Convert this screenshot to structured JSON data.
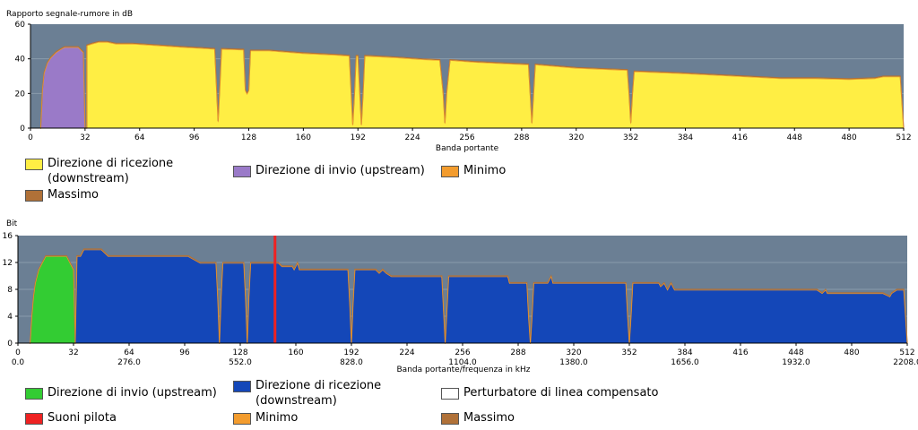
{
  "colors": {
    "plot_bg": "#6b7f94",
    "snr_downstream": "#ffee44",
    "snr_upstream": "#9a7ac8",
    "minimum": "#f39c2e",
    "maximum": "#b07138",
    "bits_upstream": "#33cc33",
    "bits_downstream": "#1447b8",
    "pilot": "#ee2222",
    "compensated": "#ffffff"
  },
  "chart_data": [
    {
      "id": "snr",
      "type": "area",
      "ylabel": "Rapporto segnale-rumore in dB",
      "xlabel": "Banda portante",
      "xlim": [
        0,
        512
      ],
      "ylim": [
        0,
        60
      ],
      "yticks": [
        "0",
        "20",
        "40",
        "60"
      ],
      "xticks": [
        "0",
        "32",
        "64",
        "96",
        "128",
        "160",
        "192",
        "224",
        "256",
        "288",
        "320",
        "352",
        "384",
        "416",
        "448",
        "480",
        "512"
      ],
      "grid": true,
      "series": [
        {
          "name": "Direzione di invio (upstream)",
          "color_key": "snr_upstream",
          "points": [
            [
              6,
              0
            ],
            [
              7,
              22
            ],
            [
              8,
              32
            ],
            [
              10,
              38
            ],
            [
              12,
              41
            ],
            [
              15,
              44
            ],
            [
              18,
              46
            ],
            [
              20,
              47
            ],
            [
              26,
              47
            ],
            [
              28,
              47
            ],
            [
              30,
              45
            ],
            [
              31,
              44
            ],
            [
              32,
              0
            ]
          ]
        },
        {
          "name": "Direzione di ricezione (downstream)",
          "color_key": "snr_downstream",
          "points": [
            [
              33,
              0
            ],
            [
              33,
              48
            ],
            [
              36,
              49
            ],
            [
              40,
              50
            ],
            [
              45,
              50
            ],
            [
              50,
              49
            ],
            [
              60,
              49
            ],
            [
              75,
              48
            ],
            [
              90,
              47
            ],
            [
              100,
              46.5
            ],
            [
              108,
              46
            ],
            [
              109,
              25
            ],
            [
              110,
              4
            ],
            [
              111,
              24
            ],
            [
              112,
              46
            ],
            [
              125,
              45.5
            ],
            [
              126,
              22
            ],
            [
              127,
              20
            ],
            [
              128,
              22
            ],
            [
              129,
              45
            ],
            [
              140,
              45
            ],
            [
              160,
              43.5
            ],
            [
              180,
              42.5
            ],
            [
              187,
              42
            ],
            [
              188,
              22
            ],
            [
              189,
              2
            ],
            [
              190,
              20
            ],
            [
              191,
              42
            ],
            [
              192,
              42
            ],
            [
              193,
              22
            ],
            [
              194,
              2
            ],
            [
              195,
              20
            ],
            [
              196,
              42
            ],
            [
              215,
              41
            ],
            [
              230,
              40
            ],
            [
              240,
              39.5
            ],
            [
              242,
              20
            ],
            [
              243,
              3
            ],
            [
              244,
              20
            ],
            [
              246,
              39.5
            ],
            [
              260,
              38.5
            ],
            [
              280,
              37.5
            ],
            [
              292,
              37
            ],
            [
              293,
              20
            ],
            [
              294,
              3
            ],
            [
              295,
              20
            ],
            [
              296,
              37
            ],
            [
              320,
              35
            ],
            [
              345,
              34
            ],
            [
              350,
              33.8
            ],
            [
              351,
              20
            ],
            [
              352,
              3
            ],
            [
              353,
              20
            ],
            [
              354,
              33
            ],
            [
              380,
              32
            ],
            [
              410,
              30.5
            ],
            [
              440,
              29
            ],
            [
              460,
              29
            ],
            [
              480,
              28.5
            ],
            [
              495,
              29
            ],
            [
              500,
              30
            ],
            [
              508,
              30
            ],
            [
              510,
              30
            ],
            [
              511,
              15
            ],
            [
              512,
              0
            ]
          ]
        }
      ]
    },
    {
      "id": "bits",
      "type": "area",
      "ylabel": "Bit",
      "xlabel": "Banda portante/frequenza in kHz",
      "xlim": [
        0,
        512
      ],
      "ylim": [
        0,
        16
      ],
      "yticks": [
        "0",
        "4",
        "8",
        "12",
        "16"
      ],
      "xticks": [
        "0",
        "32",
        "64",
        "96",
        "128",
        "160",
        "192",
        "224",
        "256",
        "288",
        "320",
        "352",
        "384",
        "416",
        "448",
        "480",
        "512"
      ],
      "xticks_khz": [
        {
          "x": 0,
          "label": "0.0"
        },
        {
          "x": 64,
          "label": "276.0"
        },
        {
          "x": 128,
          "label": "552.0"
        },
        {
          "x": 192,
          "label": "828.0"
        },
        {
          "x": 256,
          "label": "1104.0"
        },
        {
          "x": 320,
          "label": "1380.0"
        },
        {
          "x": 384,
          "label": "1656.0"
        },
        {
          "x": 448,
          "label": "1932.0"
        },
        {
          "x": 512,
          "label": "2208.0"
        }
      ],
      "grid": true,
      "pilot_tone_x": 148,
      "series": [
        {
          "name": "Direzione di invio (upstream)",
          "color_key": "bits_upstream",
          "points": [
            [
              7,
              0
            ],
            [
              8,
              4
            ],
            [
              9,
              7
            ],
            [
              10,
              9
            ],
            [
              12,
              11
            ],
            [
              14,
              12
            ],
            [
              16,
              13
            ],
            [
              28,
              13
            ],
            [
              30,
              12
            ],
            [
              32,
              11
            ],
            [
              33,
              0
            ]
          ]
        },
        {
          "name": "Direzione di ricezione (downstream)",
          "color_key": "bits_downstream",
          "points": [
            [
              33,
              0
            ],
            [
              34,
              13
            ],
            [
              36,
              13
            ],
            [
              38,
              14
            ],
            [
              48,
              14
            ],
            [
              52,
              13
            ],
            [
              58,
              13
            ],
            [
              98,
              13
            ],
            [
              105,
              12
            ],
            [
              114,
              12
            ],
            [
              115,
              7
            ],
            [
              116,
              0
            ],
            [
              117,
              7
            ],
            [
              118,
              12
            ],
            [
              130,
              12
            ],
            [
              131,
              7
            ],
            [
              132,
              0
            ],
            [
              133,
              7
            ],
            [
              134,
              12
            ],
            [
              150,
              12
            ],
            [
              152,
              11.5
            ],
            [
              158,
              11.5
            ],
            [
              159,
              11
            ],
            [
              160,
              11.5
            ],
            [
              161,
              12
            ],
            [
              162,
              11
            ],
            [
              175,
              11
            ],
            [
              190,
              11
            ],
            [
              191,
              6
            ],
            [
              192,
              0
            ],
            [
              193,
              6
            ],
            [
              194,
              11
            ],
            [
              206,
              11
            ],
            [
              208,
              10.5
            ],
            [
              210,
              11
            ],
            [
              212,
              10.5
            ],
            [
              215,
              10
            ],
            [
              238,
              10
            ],
            [
              244,
              10
            ],
            [
              245,
              5
            ],
            [
              246,
              0
            ],
            [
              247,
              5
            ],
            [
              248,
              10
            ],
            [
              282,
              10
            ],
            [
              283,
              9
            ],
            [
              293,
              9
            ],
            [
              294,
              4
            ],
            [
              295,
              0
            ],
            [
              296,
              4
            ],
            [
              297,
              9
            ],
            [
              305,
              9
            ],
            [
              307,
              10
            ],
            [
              308,
              9
            ],
            [
              343,
              9
            ],
            [
              350,
              9
            ],
            [
              351,
              4
            ],
            [
              352,
              0
            ],
            [
              353,
              4
            ],
            [
              354,
              9
            ],
            [
              369,
              9
            ],
            [
              370,
              8.5
            ],
            [
              372,
              9
            ],
            [
              374,
              8
            ],
            [
              376,
              9
            ],
            [
              378,
              8
            ],
            [
              396,
              8
            ],
            [
              448,
              8
            ],
            [
              460,
              8
            ],
            [
              463,
              7.5
            ],
            [
              465,
              8
            ],
            [
              466,
              7.5
            ],
            [
              498,
              7.5
            ],
            [
              502,
              7
            ],
            [
              503,
              7.5
            ],
            [
              506,
              8
            ],
            [
              510,
              8
            ],
            [
              511,
              4
            ],
            [
              512,
              0
            ]
          ]
        }
      ]
    }
  ],
  "legends": {
    "snr": [
      {
        "label": "Direzione di ricezione (downstream)",
        "color_key": "snr_downstream"
      },
      {
        "label": "Direzione di invio (upstream)",
        "color_key": "snr_upstream"
      },
      {
        "label": "Minimo",
        "color_key": "minimum"
      },
      {
        "label": "Massimo",
        "color_key": "maximum"
      }
    ],
    "bits": [
      {
        "label": "Direzione di invio (upstream)",
        "color_key": "bits_upstream"
      },
      {
        "label": "Direzione di ricezione (downstream)",
        "color_key": "bits_downstream"
      },
      {
        "label": "Perturbatore di linea compensato",
        "color_key": "compensated"
      },
      {
        "label": "Suoni pilota",
        "color_key": "pilot"
      },
      {
        "label": "Minimo",
        "color_key": "minimum"
      },
      {
        "label": "Massimo",
        "color_key": "maximum"
      }
    ]
  }
}
